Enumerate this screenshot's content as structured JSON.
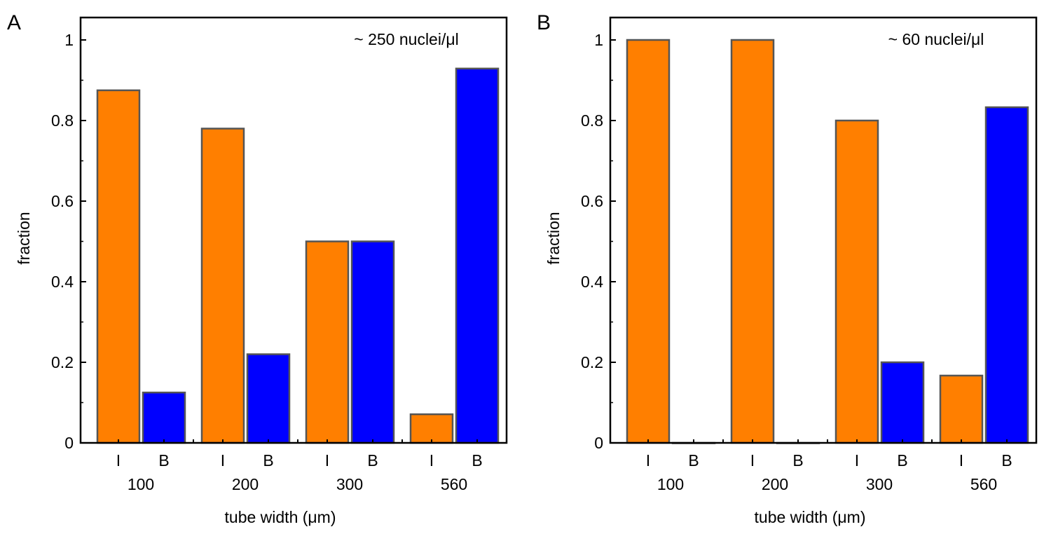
{
  "chart_data": [
    {
      "type": "bar",
      "panel_label": "A",
      "annotation": "~ 250 nuclei/μl",
      "xlabel": "tube width (μm)",
      "ylabel": "fraction",
      "ylim": [
        0,
        1.05
      ],
      "yticks": [
        "0",
        "0.2",
        "0.4",
        "0.6",
        "0.8",
        "1"
      ],
      "categories": [
        "100",
        "200",
        "300",
        "560"
      ],
      "subcategories": [
        "I",
        "B"
      ],
      "series": [
        {
          "name": "I",
          "color": "#ff7f00",
          "values": [
            0.875,
            0.78,
            0.5,
            0.071
          ]
        },
        {
          "name": "B",
          "color": "#0000ff",
          "values": [
            0.125,
            0.22,
            0.5,
            0.929
          ]
        }
      ],
      "grid": false
    },
    {
      "type": "bar",
      "panel_label": "B",
      "annotation": "~ 60 nuclei/μl",
      "xlabel": "tube width (μm)",
      "ylabel": "fraction",
      "ylim": [
        0,
        1.05
      ],
      "yticks": [
        "0",
        "0.2",
        "0.4",
        "0.6",
        "0.8",
        "1"
      ],
      "categories": [
        "100",
        "200",
        "300",
        "560"
      ],
      "subcategories": [
        "I",
        "B"
      ],
      "series": [
        {
          "name": "I",
          "color": "#ff7f00",
          "values": [
            1.0,
            1.0,
            0.8,
            0.167
          ]
        },
        {
          "name": "B",
          "color": "#0000ff",
          "values": [
            0.0,
            0.0,
            0.2,
            0.833
          ]
        }
      ],
      "grid": false
    }
  ]
}
